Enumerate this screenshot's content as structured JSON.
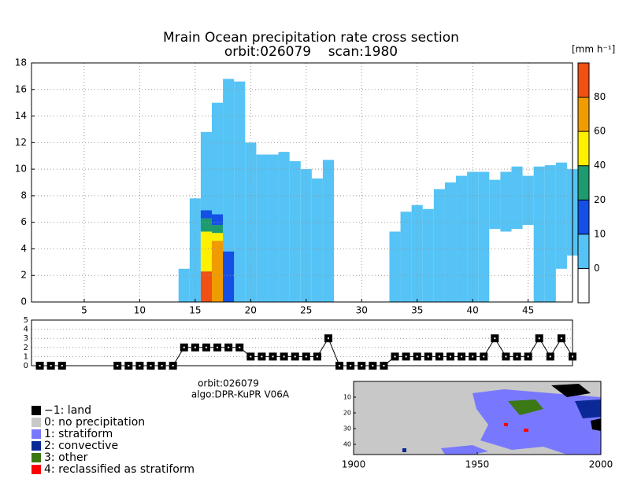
{
  "chart_data": [
    {
      "type": "column_profile",
      "title": "Mrain Ocean precipitation rate cross section",
      "subtitle": "orbit:026079    scan:1980",
      "xlim": [
        0.25,
        49
      ],
      "xticks": [
        5,
        10,
        15,
        20,
        25,
        30,
        35,
        40,
        45
      ],
      "ylim": [
        0,
        18
      ],
      "yticks": [
        0,
        2,
        4,
        6,
        8,
        10,
        12,
        14,
        16,
        18
      ],
      "grid": true,
      "color": "#55c3f5",
      "columns": [
        1,
        2,
        3,
        4,
        5,
        6,
        7,
        8,
        9,
        10,
        11,
        12,
        13,
        14,
        15,
        16,
        17,
        18,
        19,
        20,
        21,
        22,
        23,
        24,
        25,
        26,
        27,
        28,
        29,
        30,
        31,
        32,
        33,
        34,
        35,
        36,
        37,
        38,
        39,
        40,
        41,
        42,
        43,
        44,
        45,
        46,
        47,
        48,
        49
      ],
      "tops": [
        null,
        null,
        null,
        null,
        null,
        null,
        null,
        null,
        null,
        null,
        null,
        null,
        null,
        2.5,
        7.8,
        12.8,
        15,
        16.8,
        16.6,
        12,
        11.1,
        11.1,
        11.3,
        10.6,
        10,
        9.3,
        10.7,
        null,
        null,
        null,
        null,
        null,
        5.3,
        6.8,
        7.3,
        7,
        8.5,
        9,
        9.5,
        9.8,
        9.8,
        9.2,
        9.8,
        10.2,
        9.5,
        10.2,
        10.3,
        10.5,
        10
      ],
      "bottoms": [
        null,
        null,
        null,
        null,
        null,
        null,
        null,
        null,
        null,
        null,
        null,
        null,
        null,
        0,
        0,
        0,
        0,
        0,
        0,
        0,
        0,
        0,
        0,
        0,
        0,
        0,
        0,
        null,
        null,
        null,
        null,
        null,
        0,
        0,
        0,
        0,
        0,
        0,
        0,
        0,
        0,
        5.5,
        5.3,
        5.5,
        5.8,
        0,
        0,
        2.5,
        3.5
      ],
      "cells": [
        {
          "column": 16,
          "bottom": 0,
          "top": 2.3,
          "rate": 85
        },
        {
          "column": 16,
          "bottom": 2.3,
          "top": 5.3,
          "rate": 50
        },
        {
          "column": 16,
          "bottom": 5.3,
          "top": 6.3,
          "rate": 30
        },
        {
          "column": 16,
          "bottom": 6.3,
          "top": 6.9,
          "rate": 15
        },
        {
          "column": 17,
          "bottom": 0,
          "top": 4.6,
          "rate": 65
        },
        {
          "column": 17,
          "bottom": 4.6,
          "top": 5.2,
          "rate": 50
        },
        {
          "column": 17,
          "bottom": 5.2,
          "top": 5.8,
          "rate": 30
        },
        {
          "column": 17,
          "bottom": 5.8,
          "top": 6.6,
          "rate": 15
        },
        {
          "column": 18,
          "bottom": 0,
          "top": 3.8,
          "rate": 15
        }
      ],
      "colorbar": {
        "label": "[mm h⁻¹]",
        "levels": [
          0,
          10,
          20,
          40,
          60,
          80
        ],
        "colors": [
          "#ffffff",
          "#55c3f5",
          "#1450e6",
          "#1e9b6e",
          "#fff000",
          "#f09b00",
          "#f05014"
        ]
      }
    },
    {
      "type": "line",
      "color": "#000000",
      "xlim": [
        0.25,
        49
      ],
      "ylim": [
        0,
        5
      ],
      "yticks": [
        0,
        1,
        2,
        3,
        4,
        5
      ],
      "grid": true,
      "x": [
        1,
        2,
        3,
        4,
        5,
        6,
        7,
        8,
        9,
        10,
        11,
        12,
        13,
        14,
        15,
        16,
        17,
        18,
        19,
        20,
        21,
        22,
        23,
        24,
        25,
        26,
        27,
        28,
        29,
        30,
        31,
        32,
        33,
        34,
        35,
        36,
        37,
        38,
        39,
        40,
        41,
        42,
        43,
        44,
        45,
        46,
        47,
        48,
        49
      ],
      "values": [
        0,
        0,
        0,
        null,
        null,
        null,
        null,
        0,
        0,
        0,
        0,
        0,
        0,
        2,
        2,
        2,
        2,
        2,
        2,
        1,
        1,
        1,
        1,
        1,
        1,
        1,
        3,
        0,
        0,
        0,
        0,
        0,
        1,
        1,
        1,
        1,
        1,
        1,
        1,
        1,
        1,
        3,
        1,
        1,
        1,
        3,
        1,
        3,
        1
      ]
    },
    {
      "type": "map",
      "xlim": [
        1900,
        2000
      ],
      "xticks": [
        1900,
        1950,
        2000
      ],
      "ylim": [
        0,
        46.5
      ],
      "yticks": [
        10,
        20,
        30,
        40
      ]
    }
  ],
  "info": {
    "orbit": "orbit:026079",
    "algo": "algo:DPR-KuPR V06A"
  },
  "legend": [
    {
      "label": "−1: land",
      "color": "#000000"
    },
    {
      "label": "0: no precipitation",
      "color": "#c8c8c8"
    },
    {
      "label": "1: stratiform",
      "color": "#7878ff"
    },
    {
      "label": "2: convective",
      "color": "#0a2896"
    },
    {
      "label": "3: other",
      "color": "#3c7814"
    },
    {
      "label": "4: reclassified as stratiform",
      "color": "#ff0000"
    }
  ]
}
